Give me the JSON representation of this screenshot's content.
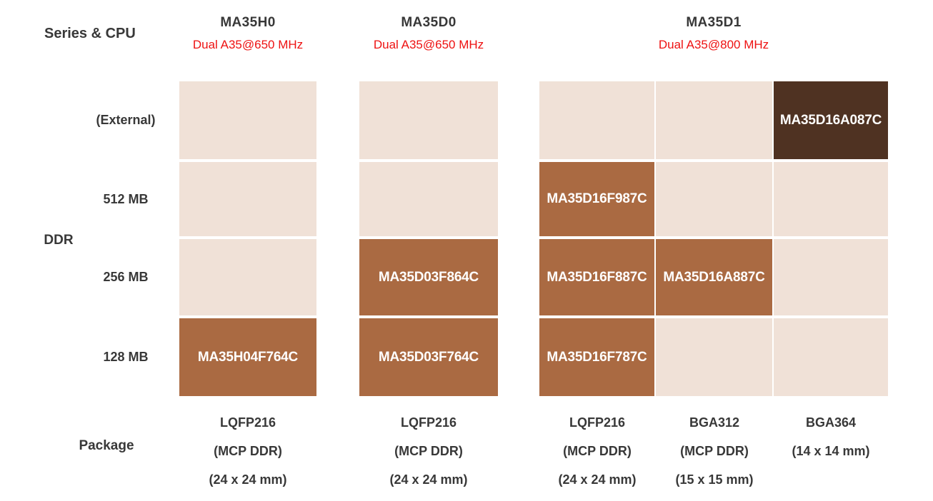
{
  "labels": {
    "series_cpu": "Series & CPU",
    "ddr": "DDR",
    "package": "Package"
  },
  "colors": {
    "empty_cell": "#f0e1d7",
    "filled_cell": "#aa6a42",
    "dark_cell": "#4f3222",
    "cpu_text": "#ee1111",
    "label_text": "#383838",
    "cell_text": "#ffffff"
  },
  "series": [
    {
      "name": "MA35H0",
      "cpu": "Dual A35@650 MHz"
    },
    {
      "name": "MA35D0",
      "cpu": "Dual A35@650 MHz"
    },
    {
      "name": "MA35D1",
      "cpu": "Dual A35@800 MHz"
    }
  ],
  "ddr_rows": [
    "(External)",
    "512 MB",
    "256 MB",
    "128 MB"
  ],
  "packages": [
    {
      "lines": [
        "LQFP216",
        "(MCP DDR)",
        "(24 x 24 mm)"
      ]
    },
    {
      "lines": [
        "LQFP216",
        "(MCP DDR)",
        "(24 x 24 mm)"
      ]
    },
    {
      "lines": [
        "LQFP216",
        "(MCP DDR)",
        "(24 x 24 mm)"
      ]
    },
    {
      "lines": [
        "BGA312",
        "(MCP DDR)",
        "(15 x 15 mm)"
      ]
    },
    {
      "lines": [
        "BGA364",
        "(14 x 14 mm)"
      ]
    }
  ],
  "grid": {
    "cells": [
      {
        "part": "",
        "state": "empty"
      },
      {
        "part": "",
        "state": "empty"
      },
      {
        "part": "",
        "state": "empty"
      },
      {
        "part": "",
        "state": "empty"
      },
      {
        "part": "MA35D16A087C",
        "state": "dark"
      },
      {
        "part": "",
        "state": "empty"
      },
      {
        "part": "",
        "state": "empty"
      },
      {
        "part": "MA35D16F987C",
        "state": "filled"
      },
      {
        "part": "",
        "state": "empty"
      },
      {
        "part": "",
        "state": "empty"
      },
      {
        "part": "",
        "state": "empty"
      },
      {
        "part": "MA35D03F864C",
        "state": "filled"
      },
      {
        "part": "MA35D16F887C",
        "state": "filled"
      },
      {
        "part": "MA35D16A887C",
        "state": "filled"
      },
      {
        "part": "",
        "state": "empty"
      },
      {
        "part": "MA35H04F764C",
        "state": "filled"
      },
      {
        "part": "MA35D03F764C",
        "state": "filled"
      },
      {
        "part": "MA35D16F787C",
        "state": "filled"
      },
      {
        "part": "",
        "state": "empty"
      },
      {
        "part": "",
        "state": "empty"
      }
    ]
  }
}
